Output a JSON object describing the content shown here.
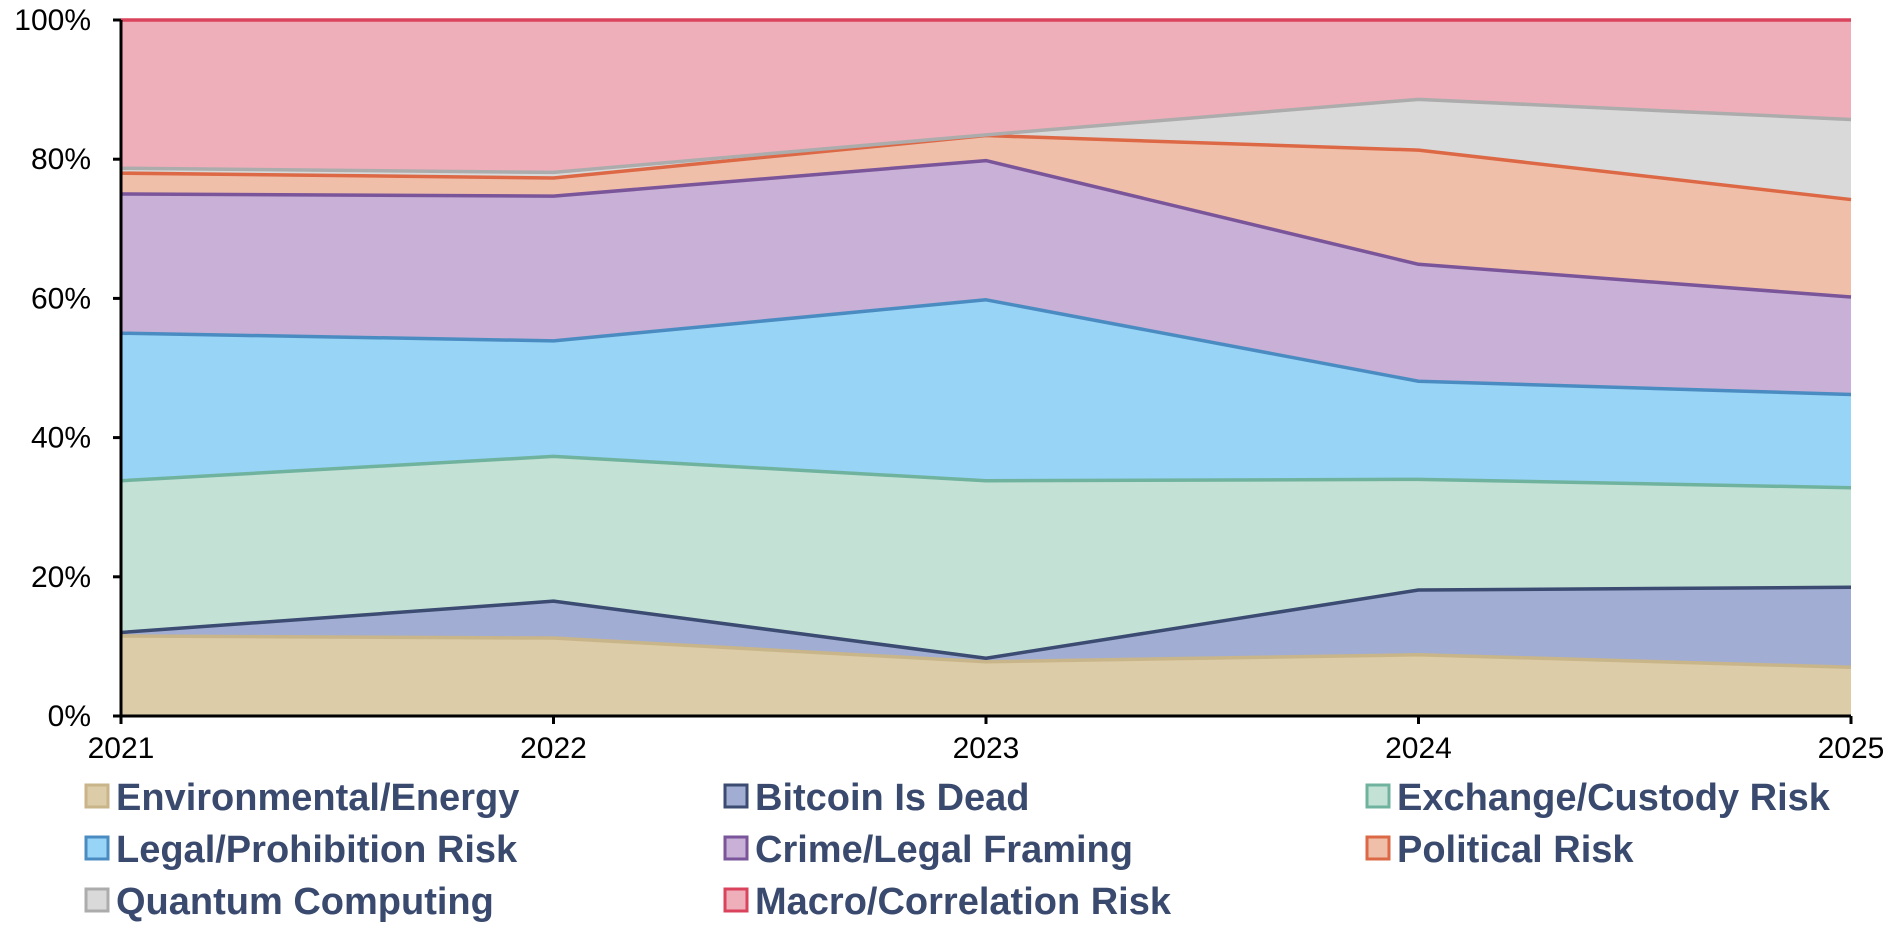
{
  "chart_data": {
    "type": "area",
    "stacked": true,
    "normalized": true,
    "x": [
      "2021",
      "2022",
      "2023",
      "2024",
      "2025"
    ],
    "ylim": [
      0,
      100
    ],
    "y_ticks": [
      "0%",
      "20%",
      "40%",
      "60%",
      "80%",
      "100%"
    ],
    "y_tick_values": [
      0,
      20,
      40,
      60,
      80,
      100
    ],
    "grid": false,
    "legend_position": "bottom",
    "series": [
      {
        "name": "Environmental/Energy",
        "values": [
          11.5,
          11.2,
          7.8,
          8.8,
          7.0
        ],
        "fill": "#dccca7",
        "line": "#c9b58a"
      },
      {
        "name": "Bitcoin Is Dead",
        "values": [
          0.5,
          5.3,
          0.5,
          9.3,
          11.5
        ],
        "fill": "#a1add2",
        "line": "#3b4b72"
      },
      {
        "name": "Exchange/Custody Risk",
        "values": [
          21.8,
          20.8,
          25.5,
          15.9,
          14.3
        ],
        "fill": "#c4e1d6",
        "line": "#6fb39e"
      },
      {
        "name": "Legal/Prohibition Risk",
        "values": [
          21.2,
          16.6,
          26.0,
          14.1,
          13.4
        ],
        "fill": "#98d4f5",
        "line": "#4a8cc2"
      },
      {
        "name": "Crime/Legal Framing",
        "values": [
          20.0,
          20.8,
          20.0,
          16.8,
          14.0
        ],
        "fill": "#c8b0d6",
        "line": "#7a559a"
      },
      {
        "name": "Political Risk",
        "values": [
          3.0,
          2.6,
          3.6,
          16.4,
          14.0
        ],
        "fill": "#f0bfaa",
        "line": "#dd6845"
      },
      {
        "name": "Quantum Computing",
        "values": [
          0.7,
          0.8,
          0.1,
          7.3,
          11.5
        ],
        "fill": "#d9d9d9",
        "line": "#acacac"
      },
      {
        "name": "Macro/Correlation Risk",
        "values": [
          21.3,
          21.9,
          16.5,
          11.4,
          14.3
        ],
        "fill": "#eeafba",
        "line": "#d9435c"
      }
    ]
  }
}
